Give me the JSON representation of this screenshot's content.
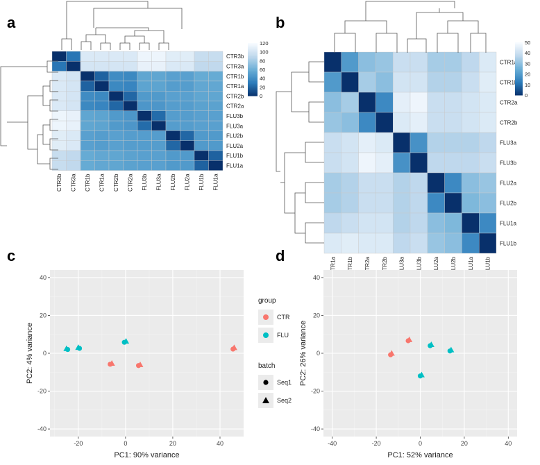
{
  "chart_data": [
    {
      "panel": "a",
      "type": "heatmap",
      "row_labels": [
        "CTR3b",
        "CTR3a",
        "CTR1b",
        "CTR1a",
        "CTR2b",
        "CTR2a",
        "FLU3b",
        "FLU3a",
        "FLU2b",
        "FLU2a",
        "FLU1b",
        "FLU1a"
      ],
      "col_labels": [
        "CTR3b",
        "CTR3a",
        "CTR1b",
        "CTR1a",
        "CTR2b",
        "CTR2a",
        "FLU3b",
        "FLU3a",
        "FLU2b",
        "FLU2a",
        "FLU1b",
        "FLU1a"
      ],
      "colorbar": {
        "ticks": [
          0,
          20,
          40,
          60,
          80,
          100,
          120
        ],
        "range": [
          0,
          120
        ],
        "colors": [
          "#08306b",
          "#2b7bba",
          "#6aaed6",
          "#bdd7ec",
          "#f7fbff"
        ]
      },
      "values": [
        [
          0,
          28,
          105,
          105,
          105,
          105,
          115,
          115,
          108,
          108,
          95,
          95
        ],
        [
          28,
          0,
          102,
          102,
          102,
          102,
          112,
          112,
          105,
          105,
          92,
          92
        ],
        [
          105,
          102,
          0,
          20,
          40,
          38,
          55,
          55,
          52,
          52,
          58,
          58
        ],
        [
          105,
          102,
          20,
          0,
          38,
          36,
          54,
          54,
          50,
          50,
          56,
          56
        ],
        [
          105,
          102,
          40,
          38,
          0,
          22,
          48,
          48,
          52,
          52,
          55,
          55
        ],
        [
          105,
          102,
          38,
          36,
          22,
          0,
          46,
          46,
          50,
          50,
          53,
          53
        ],
        [
          115,
          112,
          55,
          54,
          48,
          46,
          0,
          24,
          50,
          50,
          52,
          52
        ],
        [
          115,
          112,
          55,
          54,
          48,
          46,
          24,
          0,
          50,
          50,
          52,
          52
        ],
        [
          108,
          105,
          52,
          50,
          52,
          50,
          50,
          50,
          0,
          22,
          48,
          48
        ],
        [
          108,
          105,
          52,
          50,
          52,
          50,
          50,
          50,
          22,
          0,
          48,
          48
        ],
        [
          95,
          92,
          58,
          56,
          55,
          53,
          52,
          52,
          48,
          48,
          0,
          20
        ],
        [
          95,
          92,
          58,
          56,
          55,
          53,
          52,
          52,
          48,
          48,
          20,
          0
        ]
      ]
    },
    {
      "panel": "b",
      "type": "heatmap",
      "row_labels": [
        "CTR1a",
        "CTR1b",
        "CTR2a",
        "CTR2b",
        "FLU3a",
        "FLU3b",
        "FLU2a",
        "FLU2b",
        "FLU1a",
        "FLU1b"
      ],
      "col_labels": [
        "CTR1a",
        "CTR1b",
        "CTR2a",
        "CTR2b",
        "FLU3a",
        "FLU3b",
        "FLU2a",
        "FLU2b",
        "FLU1a",
        "FLU1b"
      ],
      "colorbar": {
        "ticks": [
          0,
          10,
          20,
          30,
          40,
          50
        ],
        "range": [
          0,
          50
        ],
        "colors": [
          "#08306b",
          "#2b7bba",
          "#6aaed6",
          "#bdd7ec",
          "#f7fbff"
        ]
      },
      "values": [
        [
          0,
          20,
          30,
          32,
          40,
          40,
          34,
          34,
          38,
          44
        ],
        [
          20,
          0,
          34,
          30,
          42,
          42,
          36,
          36,
          40,
          45
        ],
        [
          30,
          34,
          0,
          16,
          46,
          48,
          40,
          40,
          42,
          44
        ],
        [
          32,
          30,
          16,
          0,
          44,
          46,
          40,
          40,
          42,
          44
        ],
        [
          40,
          42,
          46,
          44,
          0,
          18,
          36,
          36,
          36,
          38
        ],
        [
          40,
          42,
          48,
          46,
          18,
          0,
          38,
          38,
          38,
          40
        ],
        [
          34,
          36,
          40,
          40,
          36,
          38,
          0,
          16,
          30,
          32
        ],
        [
          34,
          36,
          40,
          40,
          36,
          38,
          16,
          0,
          28,
          30
        ],
        [
          38,
          40,
          42,
          42,
          36,
          38,
          30,
          28,
          0,
          16
        ],
        [
          44,
          45,
          44,
          44,
          38,
          40,
          32,
          30,
          16,
          0
        ]
      ]
    },
    {
      "panel": "c",
      "type": "scatter",
      "xlabel": "PC1: 90% variance",
      "ylabel": "PC2: 4% variance",
      "xlim": [
        -32,
        50
      ],
      "ylim": [
        -44,
        44
      ],
      "xticks": [
        -20,
        0,
        20,
        40
      ],
      "yticks": [
        -40,
        -20,
        0,
        20,
        40
      ],
      "points": [
        {
          "x": 45.5,
          "y": 2.2,
          "group": "CTR",
          "batch": "Seq1"
        },
        {
          "x": 46.0,
          "y": 2.8,
          "group": "CTR",
          "batch": "Seq2"
        },
        {
          "x": -6.5,
          "y": -5.8,
          "group": "CTR",
          "batch": "Seq1"
        },
        {
          "x": -5.8,
          "y": -5.5,
          "group": "CTR",
          "batch": "Seq2"
        },
        {
          "x": 5.5,
          "y": -6.5,
          "group": "CTR",
          "batch": "Seq1"
        },
        {
          "x": 6.2,
          "y": -6.2,
          "group": "CTR",
          "batch": "Seq2"
        },
        {
          "x": -24.5,
          "y": 2.0,
          "group": "FLU",
          "batch": "Seq1"
        },
        {
          "x": -25.0,
          "y": 2.3,
          "group": "FLU",
          "batch": "Seq2"
        },
        {
          "x": -19.5,
          "y": 2.6,
          "group": "FLU",
          "batch": "Seq1"
        },
        {
          "x": -20.0,
          "y": 2.9,
          "group": "FLU",
          "batch": "Seq2"
        },
        {
          "x": -0.5,
          "y": 5.8,
          "group": "FLU",
          "batch": "Seq1"
        },
        {
          "x": 0.2,
          "y": 6.2,
          "group": "FLU",
          "batch": "Seq2"
        }
      ]
    },
    {
      "panel": "d",
      "type": "scatter",
      "xlabel": "PC1: 52% variance",
      "ylabel": "PC2: 26% variance",
      "xlim": [
        -44,
        44
      ],
      "ylim": [
        -44,
        44
      ],
      "xticks": [
        -40,
        -20,
        0,
        20,
        40
      ],
      "yticks": [
        -40,
        -20,
        0,
        20,
        40
      ],
      "points": [
        {
          "x": -5.5,
          "y": 6.6,
          "group": "CTR",
          "batch": "Seq1"
        },
        {
          "x": -5.0,
          "y": 7.0,
          "group": "CTR",
          "batch": "Seq2"
        },
        {
          "x": -13.5,
          "y": -0.8,
          "group": "CTR",
          "batch": "Seq1"
        },
        {
          "x": -13.0,
          "y": -0.2,
          "group": "CTR",
          "batch": "Seq2"
        },
        {
          "x": 0.0,
          "y": -12.0,
          "group": "FLU",
          "batch": "Seq1"
        },
        {
          "x": 0.6,
          "y": -11.6,
          "group": "FLU",
          "batch": "Seq2"
        },
        {
          "x": 4.5,
          "y": 4.0,
          "group": "FLU",
          "batch": "Seq1"
        },
        {
          "x": 5.0,
          "y": 4.4,
          "group": "FLU",
          "batch": "Seq2"
        },
        {
          "x": 13.5,
          "y": 1.2,
          "group": "FLU",
          "batch": "Seq1"
        },
        {
          "x": 14.0,
          "y": 1.6,
          "group": "FLU",
          "batch": "Seq2"
        }
      ]
    }
  ],
  "panels": {
    "a": "a",
    "b": "b",
    "c": "c",
    "d": "d"
  },
  "legend": {
    "group_title": "group",
    "groups": [
      {
        "name": "CTR",
        "color": "#f8766d"
      },
      {
        "name": "FLU",
        "color": "#00bfc4"
      }
    ],
    "batch_title": "batch",
    "batches": [
      {
        "name": "Seq1",
        "shape": "circle"
      },
      {
        "name": "Seq2",
        "shape": "triangle"
      }
    ]
  }
}
